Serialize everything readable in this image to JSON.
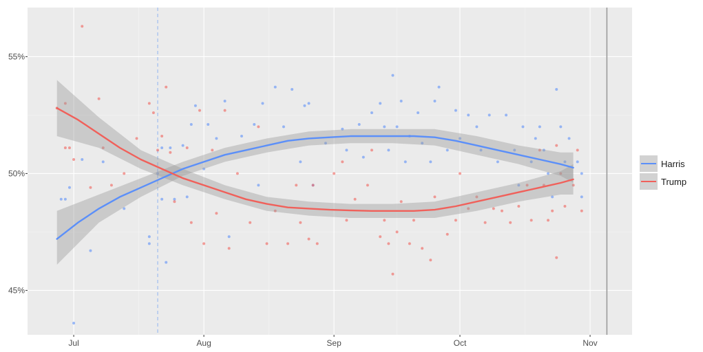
{
  "chart_data": {
    "type": "scatter",
    "title": "",
    "xlabel": "",
    "ylabel": "",
    "x_ticks": [
      {
        "date": "2024-07-01",
        "label": "Jul"
      },
      {
        "date": "2024-08-01",
        "label": "Aug"
      },
      {
        "date": "2024-09-01",
        "label": "Sep"
      },
      {
        "date": "2024-10-01",
        "label": "Oct"
      },
      {
        "date": "2024-11-01",
        "label": "Nov"
      }
    ],
    "xlim": [
      "2024-06-20",
      "2024-11-11"
    ],
    "y_ticks": [
      {
        "value": 45,
        "label": "45%"
      },
      {
        "value": 50,
        "label": "50%"
      },
      {
        "value": 55,
        "label": "55%"
      }
    ],
    "ylim": [
      43.1,
      57.1
    ],
    "grid": true,
    "legend_position": "right",
    "vertical_lines": [
      {
        "date": "2024-07-21",
        "style": "dashed",
        "color": "#8fb4f0"
      },
      {
        "date": "2024-11-05",
        "style": "solid",
        "color": "#999999"
      }
    ],
    "series": [
      {
        "name": "Harris",
        "color": "#5b8ff9",
        "trend": [
          [
            "2024-06-27",
            47.2
          ],
          [
            "2024-07-02",
            47.9
          ],
          [
            "2024-07-07",
            48.5
          ],
          [
            "2024-07-12",
            49.0
          ],
          [
            "2024-07-17",
            49.4
          ],
          [
            "2024-07-22",
            49.8
          ],
          [
            "2024-07-27",
            50.2
          ],
          [
            "2024-08-01",
            50.5
          ],
          [
            "2024-08-06",
            50.8
          ],
          [
            "2024-08-11",
            51.0
          ],
          [
            "2024-08-16",
            51.2
          ],
          [
            "2024-08-21",
            51.4
          ],
          [
            "2024-08-26",
            51.5
          ],
          [
            "2024-08-31",
            51.55
          ],
          [
            "2024-09-05",
            51.6
          ],
          [
            "2024-09-10",
            51.6
          ],
          [
            "2024-09-15",
            51.6
          ],
          [
            "2024-09-20",
            51.6
          ],
          [
            "2024-09-25",
            51.55
          ],
          [
            "2024-09-30",
            51.4
          ],
          [
            "2024-10-05",
            51.2
          ],
          [
            "2024-10-10",
            51.0
          ],
          [
            "2024-10-15",
            50.8
          ],
          [
            "2024-10-20",
            50.6
          ],
          [
            "2024-10-25",
            50.4
          ],
          [
            "2024-10-28",
            50.25
          ]
        ],
        "band": [
          [
            "2024-06-27",
            46.1,
            48.4
          ],
          [
            "2024-07-07",
            47.9,
            49.1
          ],
          [
            "2024-07-17",
            49.0,
            49.8
          ],
          [
            "2024-07-27",
            49.9,
            50.5
          ],
          [
            "2024-08-06",
            50.5,
            51.1
          ],
          [
            "2024-08-16",
            50.9,
            51.5
          ],
          [
            "2024-08-26",
            51.2,
            51.8
          ],
          [
            "2024-09-05",
            51.3,
            51.9
          ],
          [
            "2024-09-15",
            51.3,
            51.9
          ],
          [
            "2024-09-25",
            51.2,
            51.9
          ],
          [
            "2024-10-05",
            50.8,
            51.6
          ],
          [
            "2024-10-15",
            50.4,
            51.2
          ],
          [
            "2024-10-25",
            49.9,
            50.9
          ],
          [
            "2024-10-28",
            49.6,
            50.9
          ]
        ],
        "points": [
          [
            "2024-06-28",
            48.9
          ],
          [
            "2024-06-29",
            48.9
          ],
          [
            "2024-06-30",
            49.4
          ],
          [
            "2024-07-01",
            43.6
          ],
          [
            "2024-07-03",
            50.6
          ],
          [
            "2024-07-05",
            46.7
          ],
          [
            "2024-07-08",
            50.5
          ],
          [
            "2024-07-13",
            48.5
          ],
          [
            "2024-07-19",
            47.3
          ],
          [
            "2024-07-19",
            47.0
          ],
          [
            "2024-07-21",
            50.0
          ],
          [
            "2024-07-22",
            51.1
          ],
          [
            "2024-07-22",
            48.9
          ],
          [
            "2024-07-23",
            46.2
          ],
          [
            "2024-07-24",
            51.1
          ],
          [
            "2024-07-25",
            48.9
          ],
          [
            "2024-07-27",
            51.2
          ],
          [
            "2024-07-28",
            49.0
          ],
          [
            "2024-07-29",
            52.1
          ],
          [
            "2024-07-30",
            52.9
          ],
          [
            "2024-08-01",
            50.2
          ],
          [
            "2024-08-02",
            52.1
          ],
          [
            "2024-08-04",
            51.5
          ],
          [
            "2024-08-06",
            53.1
          ],
          [
            "2024-08-07",
            47.3
          ],
          [
            "2024-08-10",
            51.6
          ],
          [
            "2024-08-13",
            52.1
          ],
          [
            "2024-08-14",
            49.5
          ],
          [
            "2024-08-15",
            53.0
          ],
          [
            "2024-08-18",
            53.7
          ],
          [
            "2024-08-20",
            52.0
          ],
          [
            "2024-08-22",
            53.6
          ],
          [
            "2024-08-24",
            50.5
          ],
          [
            "2024-08-25",
            52.9
          ],
          [
            "2024-08-26",
            53.0
          ],
          [
            "2024-08-27",
            49.5
          ],
          [
            "2024-08-30",
            51.3
          ],
          [
            "2024-09-03",
            51.9
          ],
          [
            "2024-09-04",
            51.0
          ],
          [
            "2024-09-07",
            52.1
          ],
          [
            "2024-09-08",
            50.7
          ],
          [
            "2024-09-10",
            52.6
          ],
          [
            "2024-09-12",
            53.0
          ],
          [
            "2024-09-13",
            52.0
          ],
          [
            "2024-09-14",
            51.0
          ],
          [
            "2024-09-15",
            54.2
          ],
          [
            "2024-09-16",
            52.0
          ],
          [
            "2024-09-17",
            53.1
          ],
          [
            "2024-09-18",
            50.5
          ],
          [
            "2024-09-19",
            51.6
          ],
          [
            "2024-09-21",
            52.6
          ],
          [
            "2024-09-22",
            51.3
          ],
          [
            "2024-09-24",
            50.5
          ],
          [
            "2024-09-25",
            53.1
          ],
          [
            "2024-09-26",
            53.7
          ],
          [
            "2024-09-28",
            51.0
          ],
          [
            "2024-09-30",
            52.7
          ],
          [
            "2024-10-01",
            51.5
          ],
          [
            "2024-10-03",
            52.5
          ],
          [
            "2024-10-05",
            52.0
          ],
          [
            "2024-10-06",
            51.0
          ],
          [
            "2024-10-08",
            52.5
          ],
          [
            "2024-10-10",
            50.5
          ],
          [
            "2024-10-12",
            52.5
          ],
          [
            "2024-10-14",
            51.0
          ],
          [
            "2024-10-15",
            49.5
          ],
          [
            "2024-10-16",
            52.0
          ],
          [
            "2024-10-18",
            50.5
          ],
          [
            "2024-10-19",
            51.5
          ],
          [
            "2024-10-20",
            52.0
          ],
          [
            "2024-10-21",
            51.0
          ],
          [
            "2024-10-22",
            50.0
          ],
          [
            "2024-10-23",
            49.0
          ],
          [
            "2024-10-24",
            53.6
          ],
          [
            "2024-10-25",
            52.0
          ],
          [
            "2024-10-26",
            50.5
          ],
          [
            "2024-10-27",
            51.5
          ],
          [
            "2024-10-29",
            50.5
          ],
          [
            "2024-10-30",
            50.0
          ],
          [
            "2024-10-30",
            49.0
          ]
        ]
      },
      {
        "name": "Trump",
        "color": "#f0605a",
        "trend": [
          [
            "2024-06-27",
            52.8
          ],
          [
            "2024-07-02",
            52.3
          ],
          [
            "2024-07-07",
            51.7
          ],
          [
            "2024-07-12",
            51.1
          ],
          [
            "2024-07-17",
            50.6
          ],
          [
            "2024-07-22",
            50.2
          ],
          [
            "2024-07-27",
            49.8
          ],
          [
            "2024-08-01",
            49.5
          ],
          [
            "2024-08-06",
            49.2
          ],
          [
            "2024-08-11",
            48.9
          ],
          [
            "2024-08-16",
            48.7
          ],
          [
            "2024-08-21",
            48.55
          ],
          [
            "2024-08-26",
            48.5
          ],
          [
            "2024-08-31",
            48.45
          ],
          [
            "2024-09-05",
            48.42
          ],
          [
            "2024-09-10",
            48.4
          ],
          [
            "2024-09-15",
            48.4
          ],
          [
            "2024-09-20",
            48.4
          ],
          [
            "2024-09-25",
            48.45
          ],
          [
            "2024-09-30",
            48.6
          ],
          [
            "2024-10-05",
            48.8
          ],
          [
            "2024-10-10",
            49.0
          ],
          [
            "2024-10-15",
            49.2
          ],
          [
            "2024-10-20",
            49.4
          ],
          [
            "2024-10-25",
            49.6
          ],
          [
            "2024-10-28",
            49.75
          ]
        ],
        "band": [
          [
            "2024-06-27",
            51.6,
            54.0
          ],
          [
            "2024-07-07",
            51.1,
            52.4
          ],
          [
            "2024-07-17",
            50.2,
            51.0
          ],
          [
            "2024-07-27",
            49.5,
            50.2
          ],
          [
            "2024-08-06",
            48.9,
            49.5
          ],
          [
            "2024-08-16",
            48.4,
            49.0
          ],
          [
            "2024-08-26",
            48.2,
            48.8
          ],
          [
            "2024-09-05",
            48.1,
            48.7
          ],
          [
            "2024-09-15",
            48.1,
            48.7
          ],
          [
            "2024-09-25",
            48.1,
            48.8
          ],
          [
            "2024-10-05",
            48.4,
            49.2
          ],
          [
            "2024-10-15",
            48.8,
            49.6
          ],
          [
            "2024-10-25",
            49.1,
            50.1
          ],
          [
            "2024-10-28",
            49.1,
            50.4
          ]
        ],
        "points": [
          [
            "2024-06-27",
            52.8
          ],
          [
            "2024-06-29",
            53.0
          ],
          [
            "2024-06-29",
            51.1
          ],
          [
            "2024-06-30",
            51.1
          ],
          [
            "2024-07-01",
            50.6
          ],
          [
            "2024-07-03",
            56.3
          ],
          [
            "2024-07-05",
            49.4
          ],
          [
            "2024-07-07",
            53.2
          ],
          [
            "2024-07-08",
            51.1
          ],
          [
            "2024-07-10",
            49.5
          ],
          [
            "2024-07-13",
            50.0
          ],
          [
            "2024-07-16",
            51.5
          ],
          [
            "2024-07-19",
            53.0
          ],
          [
            "2024-07-20",
            52.6
          ],
          [
            "2024-07-21",
            51.0
          ],
          [
            "2024-07-22",
            51.6
          ],
          [
            "2024-07-23",
            53.7
          ],
          [
            "2024-07-24",
            50.9
          ],
          [
            "2024-07-25",
            48.8
          ],
          [
            "2024-07-28",
            51.1
          ],
          [
            "2024-07-29",
            47.9
          ],
          [
            "2024-07-31",
            52.7
          ],
          [
            "2024-08-01",
            47.0
          ],
          [
            "2024-08-03",
            51.0
          ],
          [
            "2024-08-04",
            48.3
          ],
          [
            "2024-08-06",
            52.7
          ],
          [
            "2024-08-07",
            46.8
          ],
          [
            "2024-08-09",
            50.0
          ],
          [
            "2024-08-12",
            47.9
          ],
          [
            "2024-08-14",
            52.0
          ],
          [
            "2024-08-16",
            47.0
          ],
          [
            "2024-08-18",
            48.4
          ],
          [
            "2024-08-21",
            47.0
          ],
          [
            "2024-08-23",
            49.5
          ],
          [
            "2024-08-24",
            47.9
          ],
          [
            "2024-08-26",
            47.2
          ],
          [
            "2024-08-27",
            49.5
          ],
          [
            "2024-08-28",
            47.0
          ],
          [
            "2024-09-01",
            50.0
          ],
          [
            "2024-09-03",
            50.5
          ],
          [
            "2024-09-04",
            48.0
          ],
          [
            "2024-09-06",
            48.9
          ],
          [
            "2024-09-09",
            49.5
          ],
          [
            "2024-09-10",
            51.0
          ],
          [
            "2024-09-12",
            47.3
          ],
          [
            "2024-09-13",
            48.0
          ],
          [
            "2024-09-14",
            47.0
          ],
          [
            "2024-09-15",
            45.7
          ],
          [
            "2024-09-16",
            47.5
          ],
          [
            "2024-09-17",
            48.8
          ],
          [
            "2024-09-19",
            47.0
          ],
          [
            "2024-09-20",
            48.0
          ],
          [
            "2024-09-22",
            46.8
          ],
          [
            "2024-09-24",
            46.3
          ],
          [
            "2024-09-25",
            49.0
          ],
          [
            "2024-09-28",
            47.4
          ],
          [
            "2024-09-30",
            48.0
          ],
          [
            "2024-10-01",
            50.0
          ],
          [
            "2024-10-03",
            48.5
          ],
          [
            "2024-10-05",
            49.0
          ],
          [
            "2024-10-07",
            47.9
          ],
          [
            "2024-10-09",
            48.5
          ],
          [
            "2024-10-11",
            48.4
          ],
          [
            "2024-10-13",
            47.9
          ],
          [
            "2024-10-15",
            48.6
          ],
          [
            "2024-10-17",
            49.5
          ],
          [
            "2024-10-18",
            48.0
          ],
          [
            "2024-10-20",
            51.0
          ],
          [
            "2024-10-21",
            49.5
          ],
          [
            "2024-10-22",
            48.0
          ],
          [
            "2024-10-23",
            48.4
          ],
          [
            "2024-10-24",
            51.2
          ],
          [
            "2024-10-24",
            46.4
          ],
          [
            "2024-10-25",
            50.0
          ],
          [
            "2024-10-26",
            48.6
          ],
          [
            "2024-10-28",
            49.5
          ],
          [
            "2024-10-29",
            51.0
          ],
          [
            "2024-10-30",
            48.4
          ]
        ]
      }
    ]
  },
  "legend": {
    "items": [
      {
        "label": "Harris",
        "color": "#5b8ff9"
      },
      {
        "label": "Trump",
        "color": "#f0605a"
      }
    ]
  }
}
